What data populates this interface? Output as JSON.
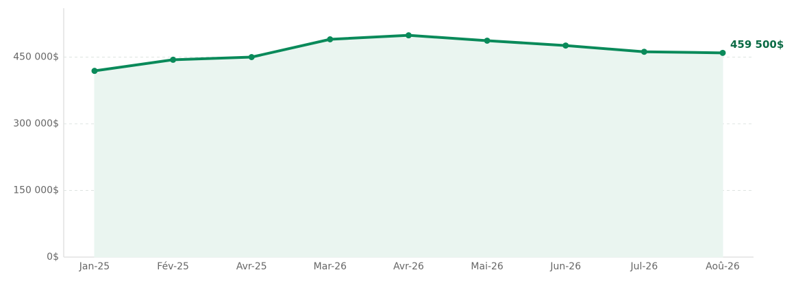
{
  "chart_data": {
    "type": "line",
    "categories": [
      "Jan-25",
      "Fév-25",
      "Avr-25",
      "Mar-26",
      "Avr-26",
      "Mai-26",
      "Jun-26",
      "Jul-26",
      "Aoû-26"
    ],
    "values": [
      419000,
      444000,
      450000,
      490000,
      499000,
      487000,
      476000,
      462000,
      459500
    ],
    "value_labels": [
      null,
      null,
      null,
      null,
      null,
      null,
      null,
      null,
      "459 500$"
    ],
    "color": "#0a8a5a",
    "area": true,
    "area_color": "#eaf5f0",
    "label_color": "#0b6b45",
    "ylim": [
      0,
      560000
    ],
    "yticks": [
      {
        "value": 0,
        "label": "0$"
      },
      {
        "value": 150000,
        "label": "150 000$"
      },
      {
        "value": 300000,
        "label": "300 000$"
      },
      {
        "value": 450000,
        "label": "450 000$"
      }
    ],
    "grid": true
  }
}
